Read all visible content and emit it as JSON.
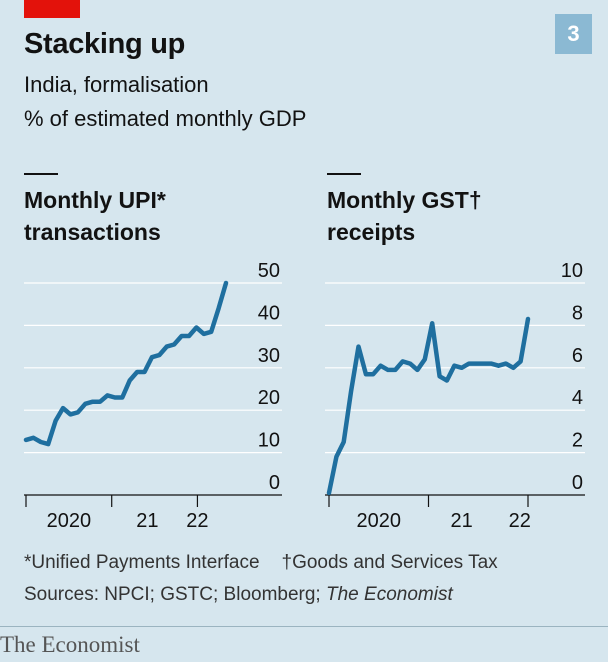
{
  "badge": "3",
  "header": {
    "title": "Stacking up",
    "subtitle": "India, formalisation",
    "unit": "% of estimated monthly GDP"
  },
  "chart_data": [
    {
      "type": "line",
      "title": "Monthly UPI* transactions",
      "title_lines": [
        "Monthly UPI*",
        "transactions"
      ],
      "ylim": [
        0,
        50
      ],
      "yticks": [
        "0",
        "10",
        "20",
        "30",
        "40",
        "50"
      ],
      "xlim": [
        0,
        28
      ],
      "xtick_positions": [
        0,
        12,
        24
      ],
      "xtick_labels": [
        {
          "label": "2020",
          "x": 6
        },
        {
          "label": "21",
          "x": 17
        },
        {
          "label": "22",
          "x": 24
        }
      ],
      "color": "#1f6f9f",
      "y": [
        13,
        13.5,
        12.5,
        12,
        17.5,
        20.5,
        19,
        19.5,
        21.5,
        22,
        22,
        23.5,
        23,
        23,
        27,
        29,
        29,
        32.5,
        33,
        35,
        35.5,
        37.5,
        37.5,
        39.5,
        38,
        38.5,
        44,
        50
      ]
    },
    {
      "type": "line",
      "title": "Monthly GST† receipts",
      "title_lines": [
        "Monthly GST†",
        "receipts"
      ],
      "ylim": [
        0,
        10
      ],
      "yticks": [
        "0",
        "2",
        "4",
        "6",
        "8",
        "10"
      ],
      "xlim": [
        0,
        24
      ],
      "xtick_positions": [
        0,
        12,
        24
      ],
      "xtick_labels": [
        {
          "label": "2020",
          "x": 6
        },
        {
          "label": "21",
          "x": 16
        },
        {
          "label": "22",
          "x": 23
        }
      ],
      "color": "#1f6f9f",
      "y": [
        0.1,
        1.8,
        2.5,
        4.9,
        7.0,
        5.7,
        5.7,
        6.1,
        5.9,
        5.9,
        6.3,
        6.2,
        5.9,
        6.4,
        8.1,
        5.6,
        5.4,
        6.1,
        6.0,
        6.2,
        6.2,
        6.2,
        6.2,
        6.1,
        6.2,
        6.0,
        6.3,
        8.3
      ]
    }
  ],
  "footnotes": {
    "upi": "*Unified Payments Interface",
    "gst": "†Goods and Services Tax"
  },
  "sources": {
    "label": "Sources: NPCI; GSTC; Bloomberg; ",
    "publication": "The Economist"
  },
  "brand": "The Economist"
}
